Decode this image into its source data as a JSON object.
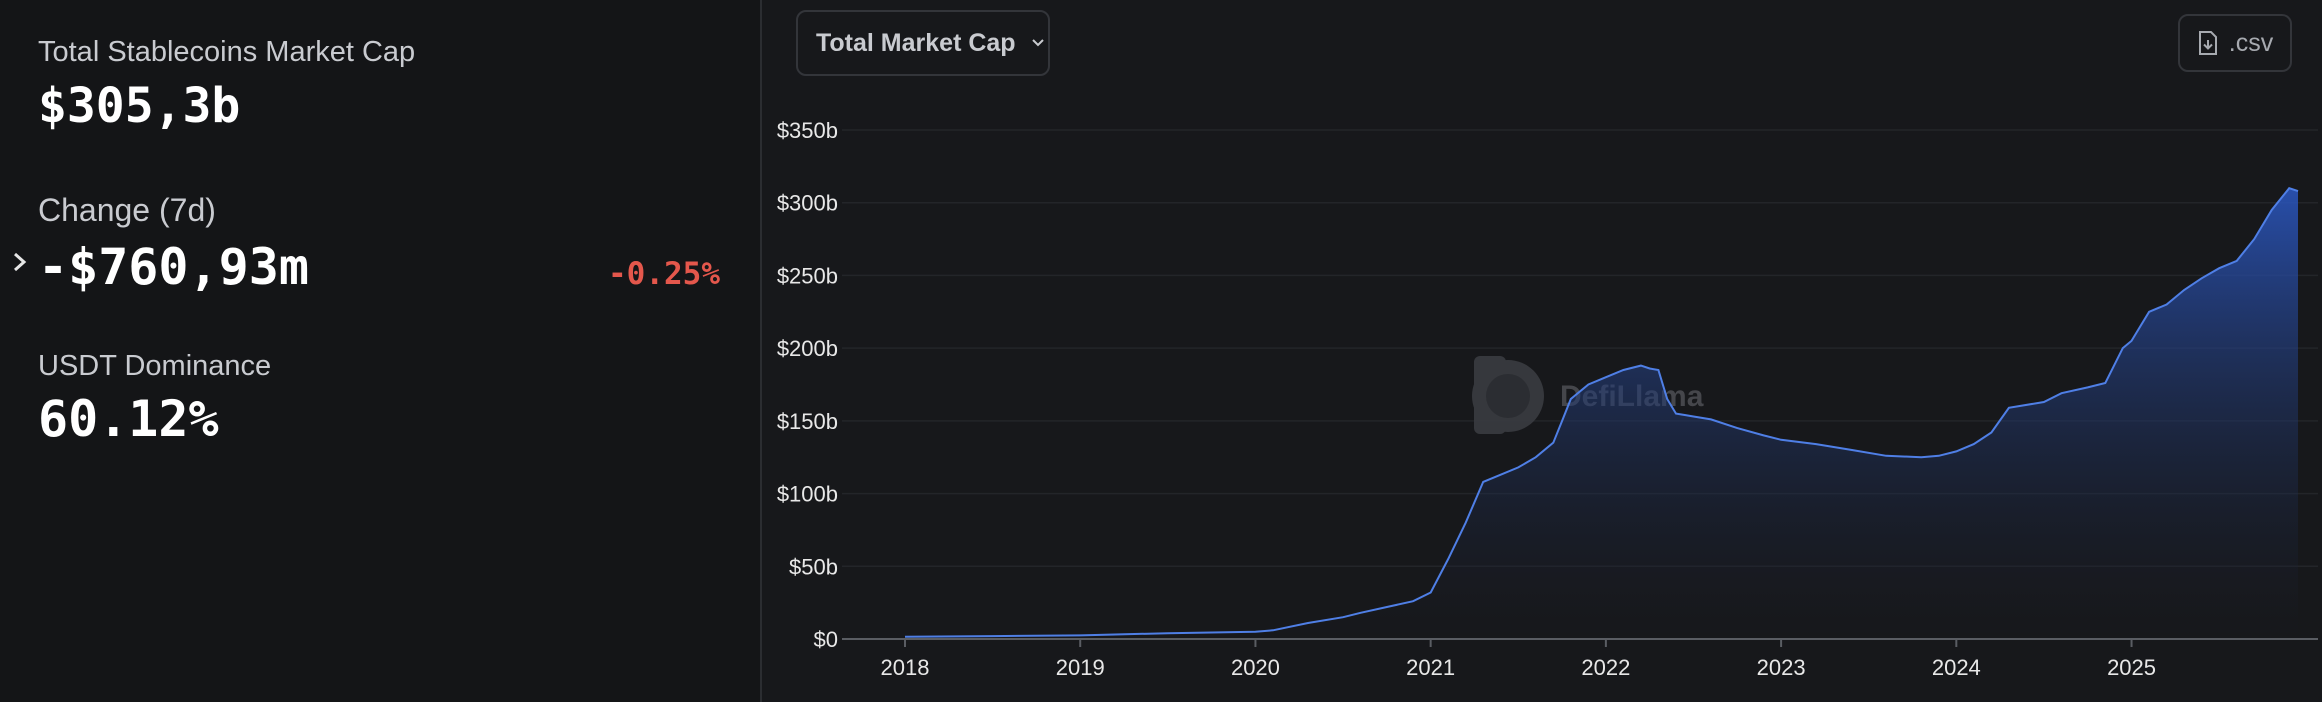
{
  "stats": {
    "mcap_label": "Total Stablecoins Market Cap",
    "mcap_value": "$305,3b",
    "change_label": "Change (7d)",
    "change_value": "-$760,93m",
    "change_pct": "-0.25%",
    "dominance_label": "USDT Dominance",
    "dominance_value": "60.12%"
  },
  "toolbar": {
    "metric_select": "Total Market Cap",
    "csv_label": ".csv"
  },
  "watermark": "DefiLlama",
  "colors": {
    "accent": "#2b58c4",
    "line": "#4f7fe6",
    "negative": "#e4574c",
    "background": "#17181b"
  },
  "chart_data": {
    "type": "area",
    "title": "",
    "xlabel": "",
    "ylabel": "",
    "x_ticks": [
      "2018",
      "2019",
      "2020",
      "2021",
      "2022",
      "2023",
      "2024",
      "2025"
    ],
    "y_ticks": [
      "$0",
      "$50b",
      "$100b",
      "$150b",
      "$200b",
      "$250b",
      "$300b",
      "$350b"
    ],
    "xlim": [
      2018.0,
      2025.95
    ],
    "ylim": [
      0,
      350
    ],
    "grid": true,
    "series": [
      {
        "values_unit": "billions USD",
        "x": [
          2018.0,
          2018.5,
          2019.0,
          2019.5,
          2020.0,
          2020.1,
          2020.3,
          2020.5,
          2020.6,
          2020.75,
          2020.9,
          2021.0,
          2021.1,
          2021.2,
          2021.3,
          2021.4,
          2021.5,
          2021.6,
          2021.7,
          2021.75,
          2021.8,
          2021.9,
          2022.0,
          2022.1,
          2022.2,
          2022.25,
          2022.3,
          2022.35,
          2022.4,
          2022.45,
          2022.5,
          2022.6,
          2022.75,
          2022.9,
          2023.0,
          2023.2,
          2023.4,
          2023.6,
          2023.8,
          2023.9,
          2024.0,
          2024.1,
          2024.2,
          2024.3,
          2024.5,
          2024.6,
          2024.75,
          2024.85,
          2024.95,
          2025.0,
          2025.1,
          2025.2,
          2025.3,
          2025.4,
          2025.5,
          2025.6,
          2025.7,
          2025.8,
          2025.9,
          2025.95
        ],
        "values": [
          1.5,
          2,
          2.5,
          4,
          5,
          6,
          11,
          15,
          18,
          22,
          26,
          32,
          55,
          80,
          108,
          113,
          118,
          125,
          135,
          150,
          165,
          175,
          180,
          185,
          188,
          186,
          185,
          165,
          155,
          154,
          153,
          151,
          145,
          140,
          137,
          134,
          130,
          126,
          125,
          126,
          129,
          134,
          142,
          159,
          163,
          169,
          173,
          176,
          200,
          205,
          225,
          230,
          240,
          248,
          255,
          260,
          275,
          295,
          310,
          308
        ]
      }
    ]
  }
}
